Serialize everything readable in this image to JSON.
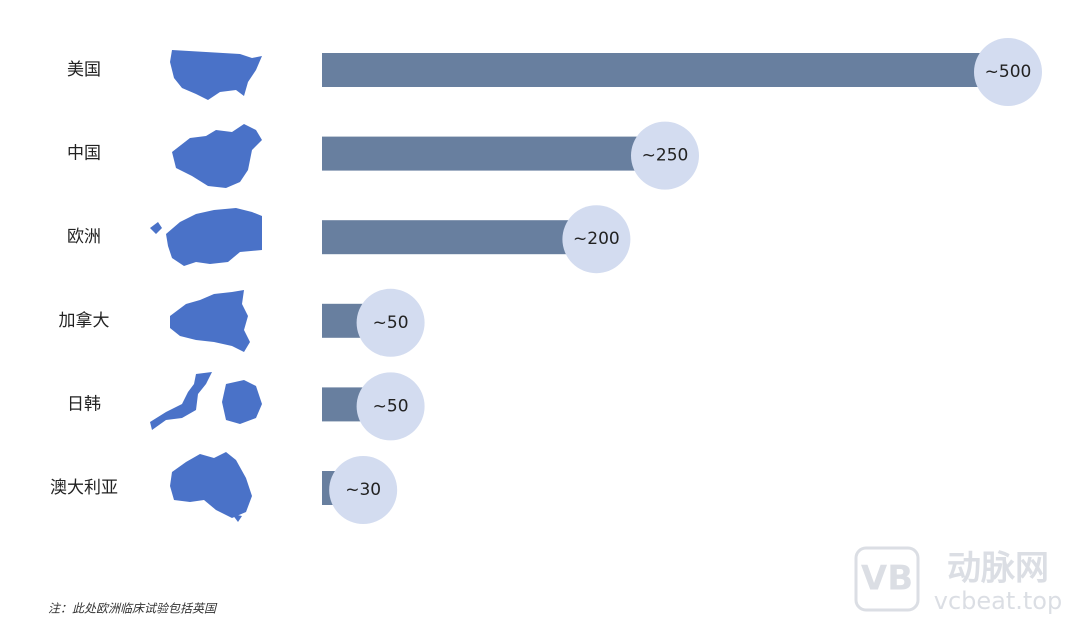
{
  "chart_data": {
    "type": "bar",
    "categories": [
      "美国",
      "中国",
      "欧洲",
      "加拿大",
      "日韩",
      "澳大利亚"
    ],
    "values": [
      500,
      250,
      200,
      50,
      50,
      30
    ],
    "value_labels": [
      "~500",
      "~250",
      "~200",
      "~50",
      "~50",
      "~30"
    ],
    "color": "#687f9f",
    "note": "注：此处欧洲临床试验包括英国"
  },
  "watermark": {
    "logo": "VB",
    "name": "动脉网",
    "url": "vcbeat.top"
  }
}
